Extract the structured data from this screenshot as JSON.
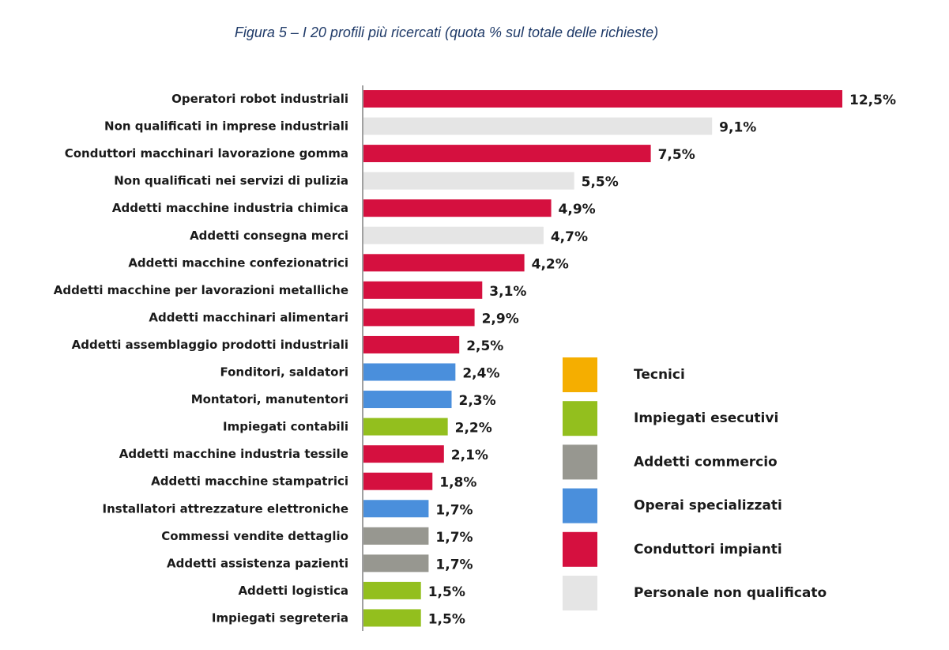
{
  "chart_data": {
    "type": "bar",
    "orientation": "horizontal",
    "title": "Figura 5 – I 20 profili più ricercati (quota % sul totale delle richieste)",
    "categories": [
      "Operatori robot industriali",
      "Non qualificati in imprese industriali",
      "Conduttori macchinari lavorazione gomma",
      "Non qualificati nei servizi di pulizia",
      "Addetti macchine industria chimica",
      "Addetti consegna merci",
      "Addetti macchine confezionatrici",
      "Addetti macchine per lavorazioni metalliche",
      "Addetti macchinari alimentari",
      "Addetti assemblaggio prodotti industriali",
      "Fonditori, saldatori",
      "Montatori, manutentori",
      "Impiegati contabili",
      "Addetti macchine industria tessile",
      "Addetti macchine stampatrici",
      "Installatori attrezzature elettroniche",
      "Commessi vendite dettaglio",
      "Addetti assistenza pazienti",
      "Addetti logistica",
      "Impiegati segreteria"
    ],
    "values": [
      12.5,
      9.1,
      7.5,
      5.5,
      4.9,
      4.7,
      4.2,
      3.1,
      2.9,
      2.5,
      2.4,
      2.3,
      2.2,
      2.1,
      1.8,
      1.7,
      1.7,
      1.7,
      1.5,
      1.5
    ],
    "value_labels": [
      "12,5%",
      "9,1%",
      "7,5%",
      "5,5%",
      "4,9%",
      "4,7%",
      "4,2%",
      "3,1%",
      "2,9%",
      "2,5%",
      "2,4%",
      "2,3%",
      "2,2%",
      "2,1%",
      "1,8%",
      "1,7%",
      "1,7%",
      "1,7%",
      "1,5%",
      "1,5%"
    ],
    "groups": [
      "Conduttori impianti",
      "Personale non qualificato",
      "Conduttori impianti",
      "Personale non qualificato",
      "Conduttori impianti",
      "Personale non qualificato",
      "Conduttori impianti",
      "Conduttori impianti",
      "Conduttori impianti",
      "Conduttori impianti",
      "Operai specializzati",
      "Operai specializzati",
      "Impiegati esecutivi",
      "Conduttori impianti",
      "Conduttori impianti",
      "Operai specializzati",
      "Addetti commercio",
      "Addetti commercio",
      "Impiegati esecutivi",
      "Impiegati esecutivi"
    ],
    "legend": [
      {
        "name": "Tecnici",
        "color": "#f5ae00"
      },
      {
        "name": "Impiegati esecutivi",
        "color": "#93bf1e"
      },
      {
        "name": "Addetti commercio",
        "color": "#979790"
      },
      {
        "name": "Operai specializzati",
        "color": "#4a8fdc"
      },
      {
        "name": "Conduttori impianti",
        "color": "#d5103f"
      },
      {
        "name": "Personale non qualificato",
        "color": "#e5e5e5"
      }
    ],
    "xlim": [
      0,
      12.5
    ],
    "grid": false,
    "legend_placement": "right"
  }
}
